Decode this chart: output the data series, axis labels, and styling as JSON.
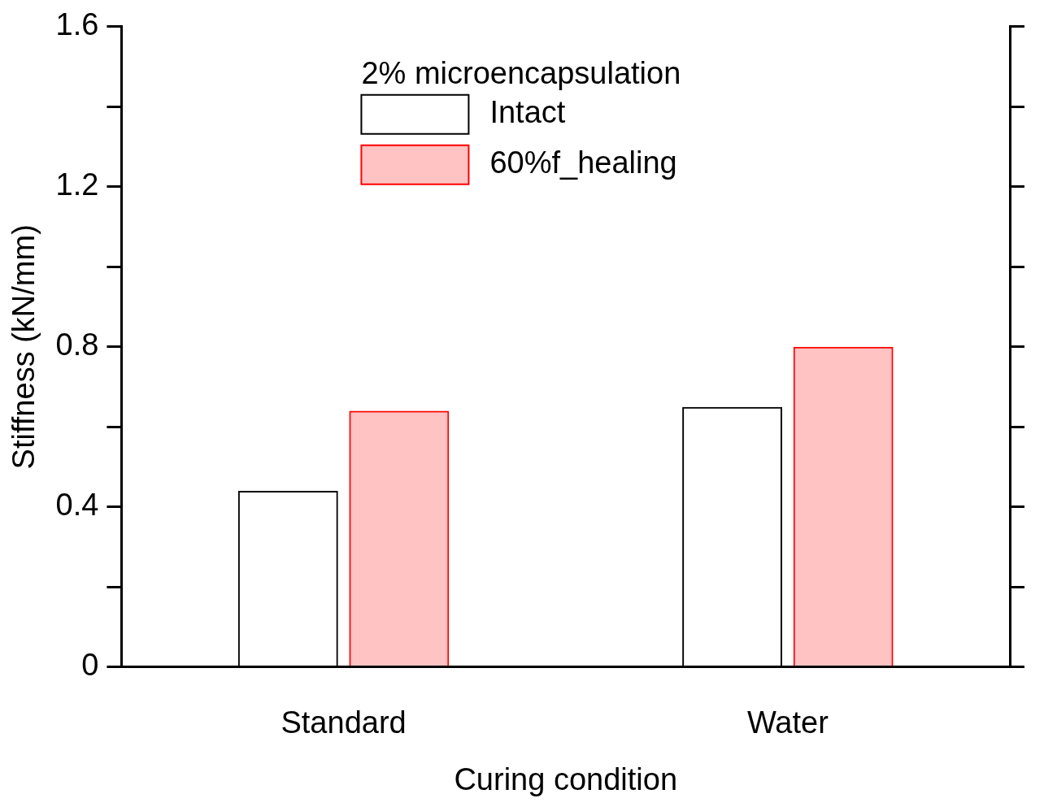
{
  "chart_data": {
    "type": "bar",
    "xlabel": "Curing condition",
    "ylabel": "Stiffness (kN/mm)",
    "legend_title": "2% microencapsulation",
    "categories": [
      "Standard",
      "Water"
    ],
    "series": [
      {
        "name": "Intact",
        "color": "#000000",
        "values": [
          0.44,
          0.65
        ]
      },
      {
        "name": "60%f_healing",
        "color": "#ff0000",
        "values": [
          0.64,
          0.8
        ]
      }
    ],
    "ylim": [
      0,
      1.6
    ],
    "yticks": [
      0,
      {
        "value": 0.2,
        "label": null
      },
      0.4,
      {
        "value": 0.6,
        "label": null
      },
      0.8,
      {
        "value": 1.0,
        "label": null
      },
      1.2,
      {
        "value": 1.4,
        "label": null
      },
      1.6
    ],
    "grid": false,
    "legend": "top"
  }
}
